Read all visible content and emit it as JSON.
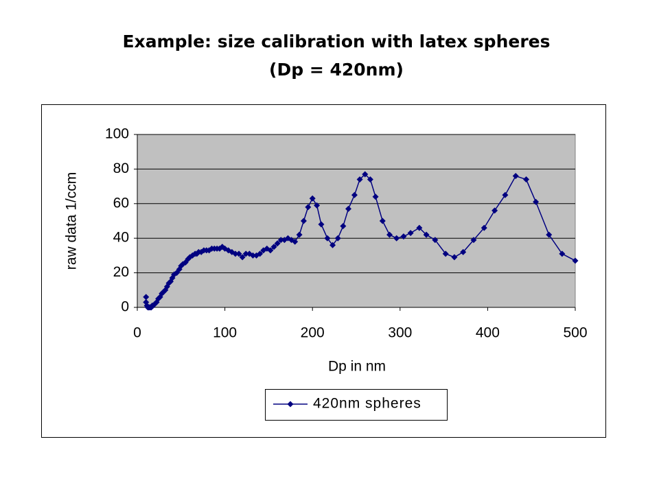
{
  "chart_data": {
    "type": "line",
    "title": [
      "Example: size calibration with latex spheres",
      "(Dp = 420nm)"
    ],
    "xlabel": "Dp in nm",
    "ylabel": "raw data 1/ccm",
    "x": [
      10,
      10,
      11,
      12,
      13,
      14,
      15,
      16,
      17,
      18,
      20,
      22,
      24,
      26,
      28,
      30,
      32,
      34,
      36,
      38,
      40,
      42,
      45,
      48,
      50,
      52,
      55,
      58,
      60,
      63,
      66,
      68,
      70,
      73,
      76,
      79,
      82,
      85,
      88,
      91,
      94,
      97,
      100,
      104,
      108,
      112,
      116,
      120,
      124,
      128,
      132,
      136,
      140,
      144,
      148,
      152,
      156,
      160,
      164,
      168,
      172,
      176,
      180,
      185,
      190,
      195,
      200,
      205,
      210,
      217,
      223,
      229,
      235,
      241,
      248,
      254,
      260,
      266,
      272,
      280,
      288,
      296,
      304,
      312,
      322,
      330,
      340,
      352,
      362,
      372,
      384,
      396,
      408,
      420,
      432,
      444,
      455,
      470,
      485,
      500
    ],
    "series": [
      {
        "name": "420nm spheres",
        "color": "#000080",
        "values": [
          6,
          3,
          1,
          0,
          0,
          0,
          0,
          0,
          1,
          1,
          2,
          3,
          5,
          6,
          8,
          9,
          10,
          12,
          14,
          15,
          17,
          19,
          20,
          22,
          24,
          25,
          26,
          28,
          29,
          30,
          31,
          31,
          32,
          32,
          33,
          33,
          33,
          34,
          34,
          34,
          34,
          35,
          34,
          33,
          32,
          31,
          31,
          29,
          31,
          31,
          30,
          30,
          31,
          33,
          34,
          33,
          35,
          37,
          39,
          39,
          40,
          39,
          38,
          42,
          50,
          58,
          63,
          59,
          48,
          40,
          36,
          40,
          47,
          57,
          65,
          74,
          77,
          74,
          64,
          50,
          42,
          40,
          41,
          43,
          46,
          42,
          39,
          31,
          29,
          32,
          39,
          46,
          56,
          65,
          76,
          74,
          61,
          42,
          31,
          27
        ]
      }
    ],
    "xlim": [
      0,
      500
    ],
    "xticks": [
      0,
      100,
      200,
      300,
      400,
      500
    ],
    "ylim": [
      0,
      100
    ],
    "yticks": [
      0,
      20,
      40,
      60,
      80,
      100
    ],
    "grid": true,
    "legend": "bottom"
  }
}
